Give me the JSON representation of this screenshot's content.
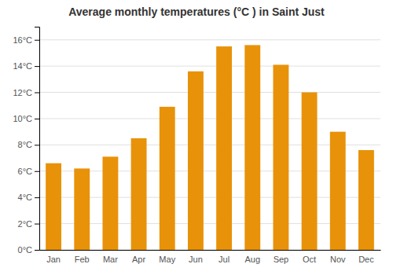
{
  "chart_data": {
    "type": "bar",
    "title": "Average monthly temperatures (°C ) in Saint Just",
    "categories": [
      "Jan",
      "Feb",
      "Mar",
      "Apr",
      "May",
      "Jun",
      "Jul",
      "Aug",
      "Sep",
      "Oct",
      "Nov",
      "Dec"
    ],
    "values": [
      6.6,
      6.2,
      7.1,
      8.5,
      10.9,
      13.6,
      15.5,
      15.6,
      14.1,
      12.0,
      9.0,
      7.6
    ],
    "color": "#E8920A",
    "ylim": [
      0,
      17
    ],
    "yticks": [
      {
        "value": 0,
        "label": "0°C"
      },
      {
        "value": 2,
        "label": "2°C"
      },
      {
        "value": 4,
        "label": "4°C"
      },
      {
        "value": 6,
        "label": "6°C"
      },
      {
        "value": 8,
        "label": "8°C"
      },
      {
        "value": 10,
        "label": "10°C"
      },
      {
        "value": 12,
        "label": "12°C"
      },
      {
        "value": 14,
        "label": "14°C"
      },
      {
        "value": 16,
        "label": "16°C"
      }
    ],
    "grid": true
  }
}
